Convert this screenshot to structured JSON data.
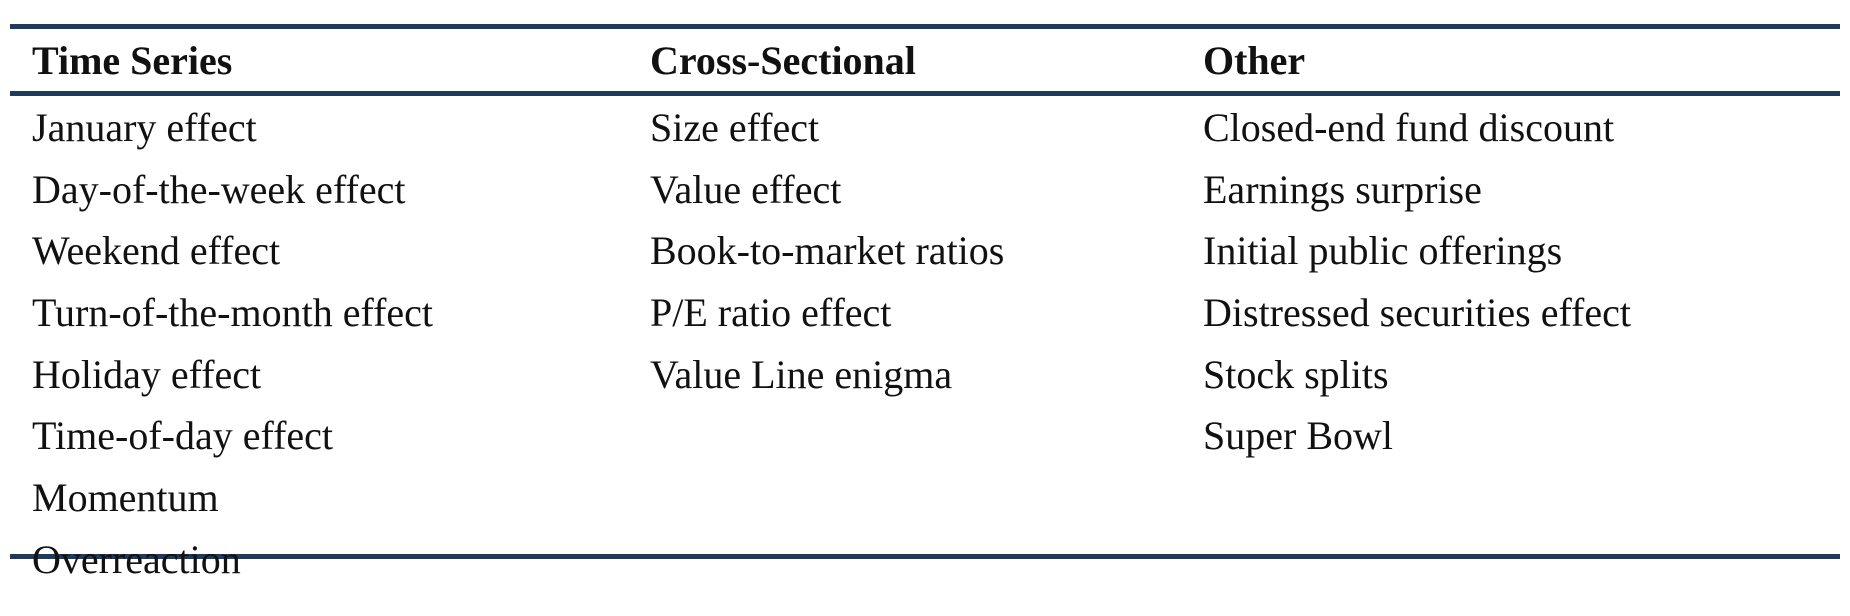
{
  "table": {
    "headers": {
      "time_series": "Time Series",
      "cross_sectional": "Cross-Sectional",
      "other": "Other"
    },
    "columns": {
      "time_series": [
        "January effect",
        "Day-of-the-week effect",
        "Weekend effect",
        "Turn-of-the-month effect",
        "Holiday effect",
        "Time-of-day effect",
        "Momentum",
        "Overreaction"
      ],
      "cross_sectional": [
        "Size effect",
        "Value effect",
        "Book-to-market ratios",
        "P/E ratio effect",
        "Value Line enigma"
      ],
      "other": [
        "Closed-end fund discount",
        "Earnings surprise",
        "Initial public offerings",
        "Distressed securities effect",
        "Stock splits",
        "Super Bowl"
      ]
    },
    "rule_color": "#1f3a5c"
  }
}
